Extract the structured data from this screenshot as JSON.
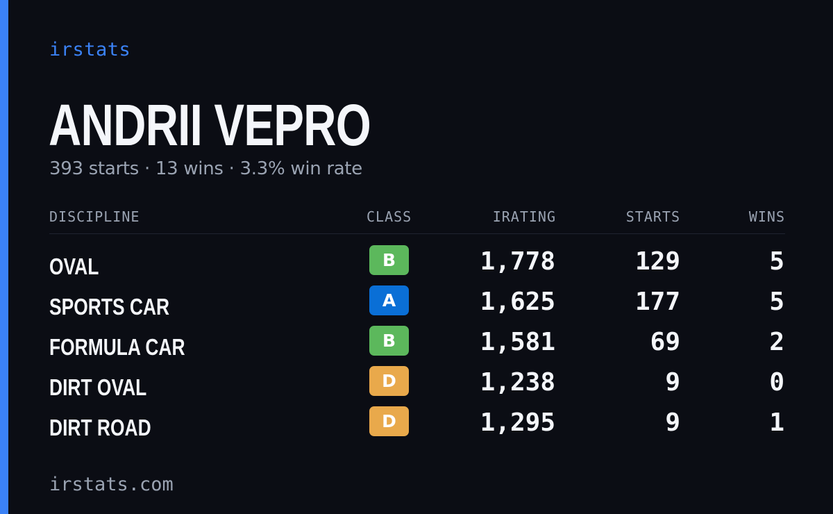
{
  "brand": "irstats",
  "driver": {
    "name": "ANDRII VEPRO",
    "summary": "393 starts · 13 wins · 3.3% win rate"
  },
  "table": {
    "headers": {
      "discipline": "DISCIPLINE",
      "class": "CLASS",
      "irating": "IRATING",
      "starts": "STARTS",
      "wins": "WINS"
    },
    "rows": [
      {
        "discipline": "OVAL",
        "class": "B",
        "class_color": "#5cb85c",
        "irating": "1,778",
        "starts": "129",
        "wins": "5"
      },
      {
        "discipline": "SPORTS CAR",
        "class": "A",
        "class_color": "#0a6fd6",
        "irating": "1,625",
        "starts": "177",
        "wins": "5"
      },
      {
        "discipline": "FORMULA CAR",
        "class": "B",
        "class_color": "#5cb85c",
        "irating": "1,581",
        "starts": "69",
        "wins": "2"
      },
      {
        "discipline": "DIRT OVAL",
        "class": "D",
        "class_color": "#e9a94b",
        "irating": "1,238",
        "starts": "9",
        "wins": "0"
      },
      {
        "discipline": "DIRT ROAD",
        "class": "D",
        "class_color": "#e9a94b",
        "irating": "1,295",
        "starts": "9",
        "wins": "1"
      }
    ]
  },
  "footer": "irstats.com",
  "colors": {
    "accent": "#3b82f6",
    "background": "#0b0d14",
    "muted_text": "#9aa3b2"
  }
}
